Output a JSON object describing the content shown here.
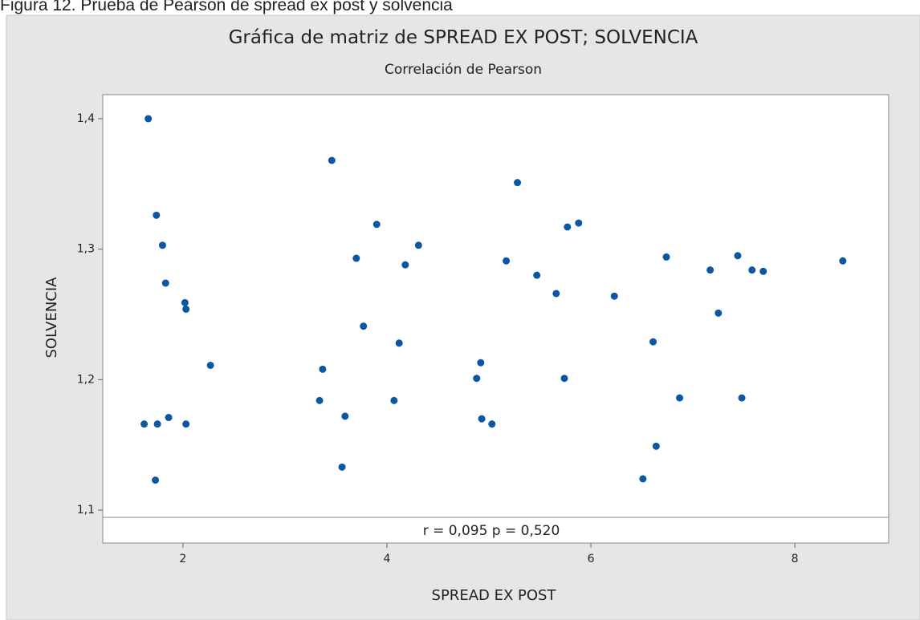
{
  "caption": "Figura 12. Prueba de Pearson de spread ex post y solvencia",
  "chart_data": {
    "type": "scatter",
    "title": "Gráfica de matriz de SPREAD EX POST; SOLVENCIA",
    "subtitle": "Correlación de Pearson",
    "x_label": "SPREAD EX POST",
    "y_label": "SOLVENCIA",
    "annotation": "r = 0,095  p = 0,520",
    "color": "#0b57a4",
    "grid": false,
    "xlim": [
      1.214,
      8.92
    ],
    "ylim": [
      1.0945,
      1.4184
    ],
    "xticks": [
      2,
      4,
      6,
      8
    ],
    "yticks": [
      {
        "value": 1.1,
        "label": "1,1"
      },
      {
        "value": 1.2,
        "label": "1,2"
      },
      {
        "value": 1.3,
        "label": "1,3"
      },
      {
        "value": 1.4,
        "label": "1,4"
      }
    ],
    "x": [
      1.62,
      1.66,
      1.74,
      1.75,
      1.73,
      1.8,
      1.83,
      1.86,
      2.02,
      2.03,
      2.03,
      2.27,
      3.34,
      3.37,
      3.46,
      3.56,
      3.59,
      3.7,
      3.77,
      3.9,
      4.07,
      4.12,
      4.18,
      4.31,
      4.88,
      4.92,
      4.93,
      5.03,
      5.17,
      5.28,
      5.47,
      5.66,
      5.74,
      5.77,
      5.88,
      6.23,
      6.51,
      6.61,
      6.64,
      6.74,
      6.87,
      7.17,
      7.25,
      7.44,
      7.48,
      7.58,
      7.69,
      8.47
    ],
    "values": [
      1.166,
      1.4,
      1.326,
      1.166,
      1.123,
      1.303,
      1.274,
      1.171,
      1.259,
      1.254,
      1.166,
      1.211,
      1.184,
      1.208,
      1.368,
      1.133,
      1.172,
      1.293,
      1.241,
      1.319,
      1.184,
      1.228,
      1.288,
      1.303,
      1.201,
      1.213,
      1.17,
      1.166,
      1.291,
      1.351,
      1.28,
      1.266,
      1.201,
      1.317,
      1.32,
      1.264,
      1.124,
      1.229,
      1.149,
      1.294,
      1.186,
      1.284,
      1.251,
      1.295,
      1.186,
      1.284,
      1.283,
      1.291
    ]
  }
}
